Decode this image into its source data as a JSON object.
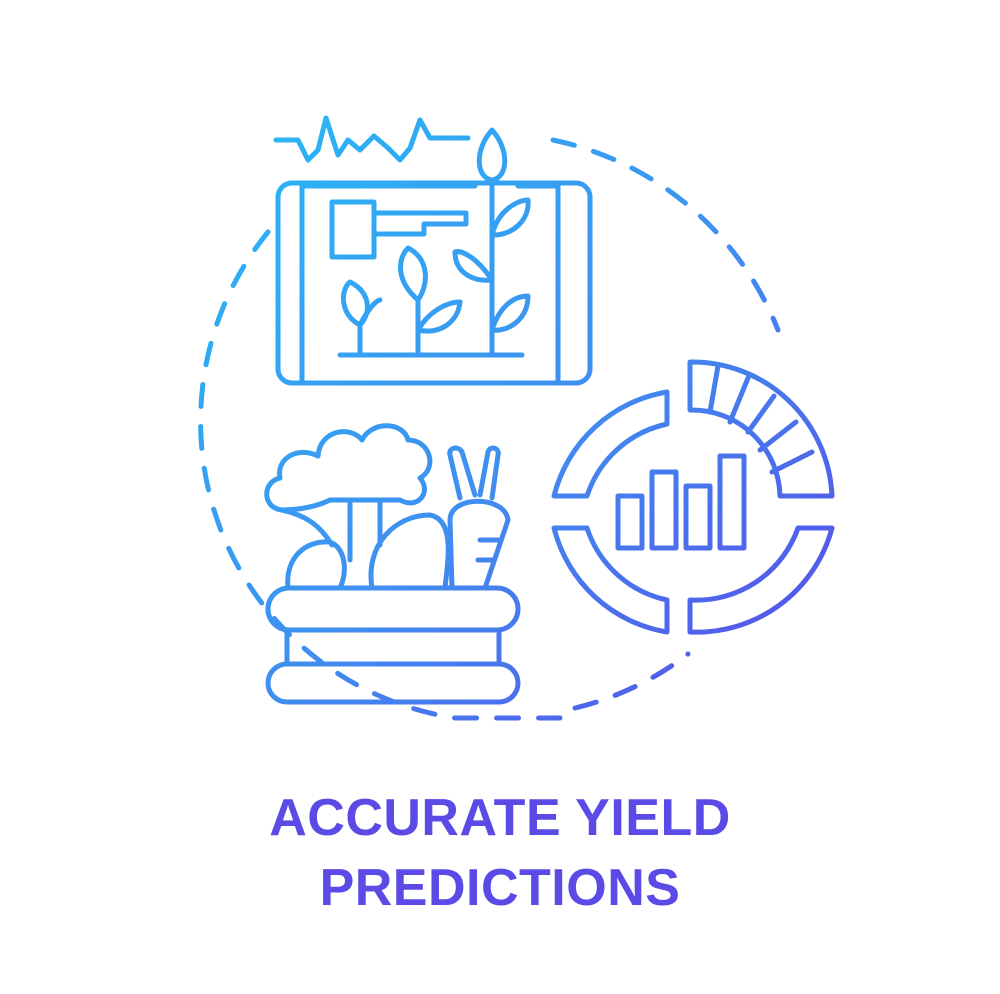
{
  "caption": {
    "line1": "ACCURATE YIELD",
    "line2": "PREDICTIONS"
  },
  "colors": {
    "gradient_start": "#29b6f6",
    "gradient_mid": "#3f8ff0",
    "gradient_end": "#5b45e8",
    "text": "#5b4ae6",
    "background": "#ffffff"
  },
  "icons": [
    "dashed-circle-frame-icon",
    "tablet-plant-growth-icon",
    "vegetable-basket-icon",
    "donut-bar-chart-icon"
  ]
}
